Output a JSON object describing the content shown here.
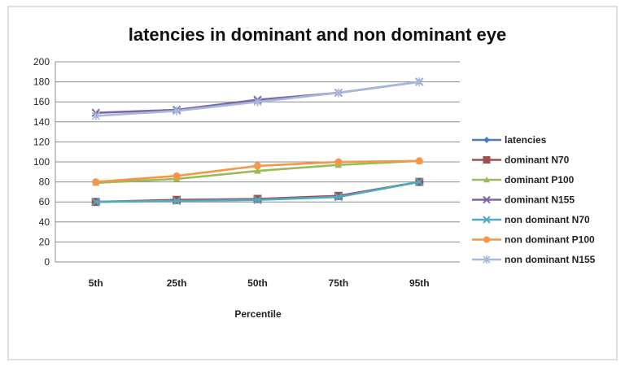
{
  "chart_data": {
    "type": "line",
    "title": "latencies in dominant and non dominant eye",
    "xlabel": "Percentile",
    "ylabel": "",
    "categories": [
      "5th",
      "25th",
      "50th",
      "75th",
      "95th"
    ],
    "ylim": [
      0,
      200
    ],
    "yticks": [
      0,
      20,
      40,
      60,
      80,
      100,
      120,
      140,
      160,
      180,
      200
    ],
    "grid": true,
    "legend_position": "right",
    "series": [
      {
        "name": "latencies",
        "color": "#4a7ebb",
        "marker": "diamond",
        "values": [
          null,
          null,
          null,
          null,
          null
        ]
      },
      {
        "name": "dominant N70",
        "color": "#a0504e",
        "marker": "square",
        "values": [
          60,
          62,
          63,
          66,
          80
        ]
      },
      {
        "name": "dominant P100",
        "color": "#9bbb59",
        "marker": "triangle",
        "values": [
          79,
          83,
          91,
          97,
          101
        ]
      },
      {
        "name": "dominant N155",
        "color": "#7e64a0",
        "marker": "x",
        "values": [
          149,
          152,
          162,
          169,
          180
        ]
      },
      {
        "name": "non dominant N70",
        "color": "#4bacc6",
        "marker": "x",
        "values": [
          60,
          61,
          62,
          65,
          80
        ]
      },
      {
        "name": "non dominant P100",
        "color": "#f79646",
        "marker": "circle",
        "values": [
          80,
          86,
          96,
          100,
          101
        ]
      },
      {
        "name": "non dominant N155",
        "color": "#a6b8de",
        "marker": "star",
        "values": [
          146,
          151,
          160,
          169,
          180
        ]
      }
    ]
  }
}
